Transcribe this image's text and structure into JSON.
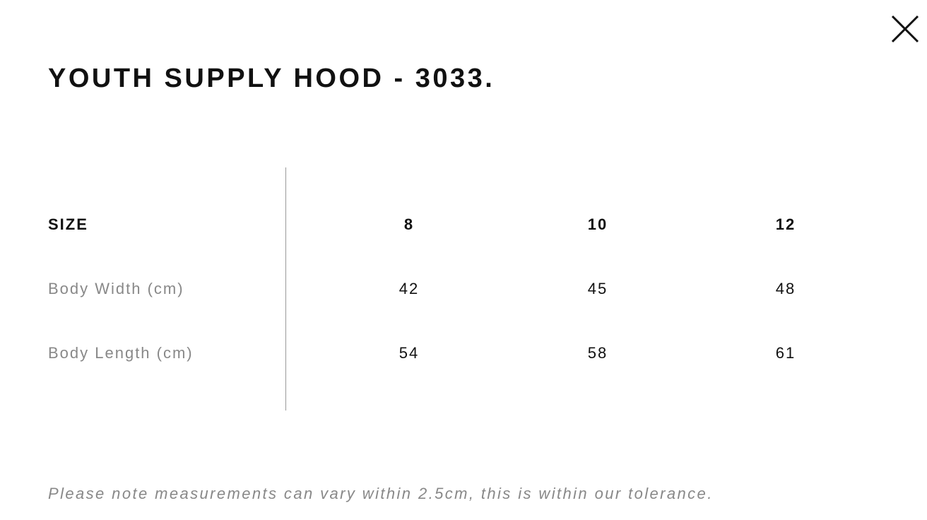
{
  "modal": {
    "title": "YOUTH SUPPLY HOOD - 3033.",
    "close_icon": "close-icon"
  },
  "table": {
    "header": {
      "label": "SIZE",
      "sizes": [
        "8",
        "10",
        "12"
      ]
    },
    "rows": [
      {
        "label": "Body Width (cm)",
        "values": [
          "42",
          "45",
          "48"
        ]
      },
      {
        "label": "Body Length (cm)",
        "values": [
          "54",
          "58",
          "61"
        ]
      }
    ]
  },
  "note": "Please note measurements can vary within 2.5cm, this is within our tolerance."
}
